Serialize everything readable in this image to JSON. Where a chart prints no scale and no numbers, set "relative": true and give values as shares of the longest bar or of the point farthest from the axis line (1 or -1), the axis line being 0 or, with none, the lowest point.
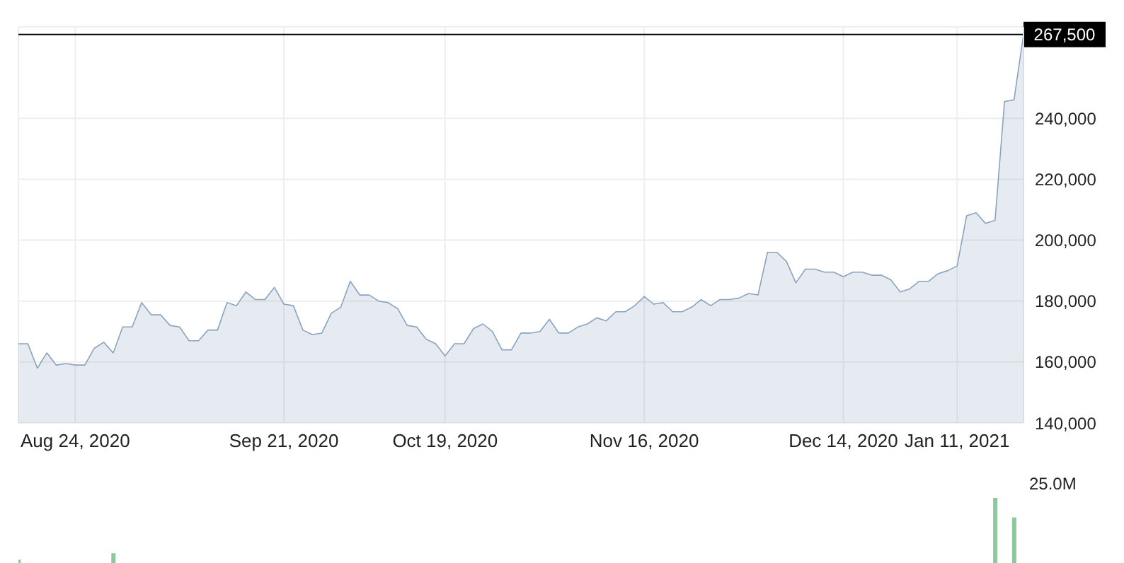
{
  "chart_data": [
    {
      "type": "area",
      "color": "#8aa4bd",
      "categories": [
        null,
        null,
        null,
        null,
        null,
        null,
        "Aug 24, 2020",
        null,
        null,
        null,
        null,
        null,
        null,
        null,
        null,
        null,
        null,
        null,
        null,
        null,
        null,
        null,
        null,
        null,
        null,
        null,
        null,
        null,
        "Sep 21, 2020",
        null,
        null,
        null,
        null,
        null,
        null,
        null,
        null,
        null,
        null,
        null,
        null,
        null,
        null,
        null,
        null,
        "Oct 19, 2020",
        null,
        null,
        null,
        null,
        null,
        null,
        null,
        null,
        null,
        null,
        null,
        null,
        null,
        null,
        null,
        null,
        null,
        null,
        null,
        null,
        "Nov 16, 2020",
        null,
        null,
        null,
        null,
        null,
        null,
        null,
        null,
        null,
        null,
        null,
        null,
        null,
        null,
        null,
        null,
        null,
        null,
        null,
        null,
        "Dec 14, 2020",
        null,
        null,
        null,
        null,
        null,
        null,
        null,
        null,
        null,
        null,
        null,
        "Jan 11, 2021",
        null,
        null,
        null,
        null,
        null,
        null,
        null
      ],
      "values": [
        166000,
        166000,
        158000,
        163000,
        159000,
        159500,
        159000,
        159000,
        164500,
        166500,
        163000,
        171500,
        171500,
        179500,
        175500,
        175500,
        172000,
        171500,
        167000,
        167000,
        170500,
        170500,
        179500,
        178500,
        183000,
        180500,
        180500,
        184500,
        179000,
        178500,
        170500,
        169000,
        169500,
        176000,
        178000,
        186500,
        182000,
        182000,
        180000,
        179500,
        177500,
        172000,
        171500,
        167500,
        166000,
        162000,
        166000,
        166000,
        171000,
        172500,
        170000,
        164000,
        164000,
        169500,
        169500,
        170000,
        174000,
        169500,
        169500,
        171500,
        172500,
        174500,
        173500,
        176500,
        176500,
        178500,
        181500,
        179000,
        179500,
        176500,
        176500,
        178000,
        180500,
        178500,
        180500,
        180500,
        181000,
        182500,
        182000,
        196000,
        196000,
        193000,
        186000,
        190500,
        190500,
        189500,
        189500,
        188000,
        189500,
        189500,
        188500,
        188500,
        187000,
        183000,
        184000,
        186500,
        186500,
        189000,
        190000,
        191500,
        208000,
        209000,
        205500,
        206500,
        245500,
        246000,
        267500
      ],
      "ylim": [
        140000,
        270000
      ],
      "yticks": [
        {
          "value": 140000,
          "label": "140,000"
        },
        {
          "value": 160000,
          "label": "160,000"
        },
        {
          "value": 180000,
          "label": "180,000"
        },
        {
          "value": 200000,
          "label": "200,000"
        },
        {
          "value": 220000,
          "label": "220,000"
        },
        {
          "value": 240000,
          "label": "240,000"
        }
      ],
      "grid": true,
      "ref_lines": [
        {
          "axis": "y",
          "value": 267500,
          "label": "267,500",
          "color": "#000000"
        }
      ]
    },
    {
      "type": "bar",
      "relative": true,
      "color": "#8cc99e",
      "categories": [
        null,
        null,
        null,
        null,
        null,
        null,
        null,
        null,
        null,
        null,
        null,
        null,
        null,
        null,
        null,
        null,
        null,
        null,
        null,
        null,
        null,
        null,
        null,
        null,
        null,
        null,
        null,
        null,
        null,
        null,
        null,
        null,
        null,
        null,
        null,
        null,
        null,
        null,
        null,
        null,
        null,
        null,
        null,
        null,
        null,
        null,
        null,
        null,
        null,
        null,
        null,
        null,
        null,
        null,
        null,
        null,
        null,
        null,
        null,
        null,
        null,
        null,
        null,
        null,
        null,
        null,
        null,
        null,
        null,
        null,
        null,
        null,
        null,
        null,
        null,
        null,
        null,
        null,
        null,
        null,
        null,
        null,
        null,
        null,
        null,
        null,
        null,
        null,
        null,
        null,
        null,
        null,
        null,
        null,
        null,
        null,
        null,
        null,
        null,
        null,
        null,
        null,
        null,
        null,
        null,
        null,
        null
      ],
      "values": [
        0.05,
        null,
        null,
        null,
        null,
        null,
        null,
        null,
        null,
        null,
        0.15,
        null,
        null,
        null,
        null,
        null,
        null,
        null,
        null,
        null,
        null,
        null,
        null,
        null,
        null,
        null,
        null,
        null,
        null,
        null,
        null,
        null,
        null,
        null,
        null,
        null,
        null,
        null,
        null,
        null,
        null,
        null,
        null,
        null,
        null,
        null,
        null,
        null,
        null,
        null,
        null,
        null,
        null,
        null,
        null,
        null,
        null,
        null,
        null,
        null,
        null,
        null,
        null,
        null,
        null,
        null,
        null,
        null,
        null,
        null,
        null,
        null,
        null,
        null,
        null,
        null,
        null,
        null,
        null,
        null,
        null,
        null,
        null,
        null,
        null,
        null,
        null,
        null,
        null,
        null,
        null,
        null,
        null,
        null,
        null,
        null,
        null,
        null,
        null,
        null,
        null,
        null,
        null,
        1,
        null,
        0.7,
        null
      ],
      "annotations": [
        "25.0M"
      ]
    }
  ]
}
